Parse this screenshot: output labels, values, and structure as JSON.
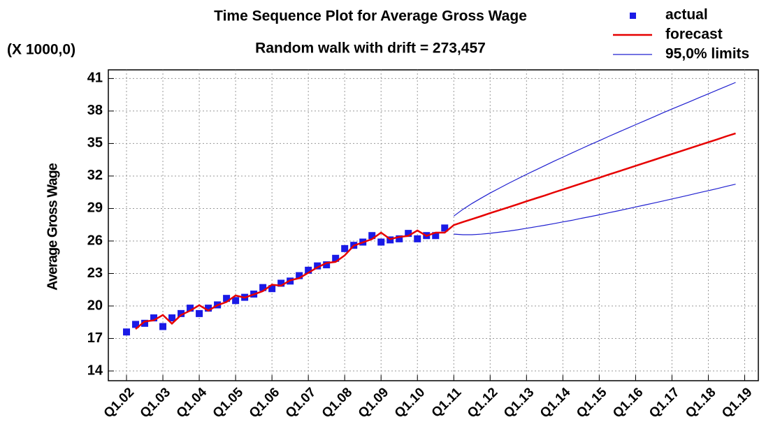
{
  "chart_data": {
    "type": "line",
    "title": "Time Sequence Plot for Average Gross Wage",
    "subtitle": "Random walk with drift = 273,457",
    "ylabel": "Average Gross Wage",
    "y_scale_note": "(X 1000,0)",
    "xlim": [
      -2,
      69.5
    ],
    "ylim": [
      13.1,
      41.8
    ],
    "xticks": [
      {
        "value": 0,
        "label": "Q1.02"
      },
      {
        "value": 4,
        "label": "Q1.03"
      },
      {
        "value": 8,
        "label": "Q1.04"
      },
      {
        "value": 12,
        "label": "Q1.05"
      },
      {
        "value": 16,
        "label": "Q1.06"
      },
      {
        "value": 20,
        "label": "Q1.07"
      },
      {
        "value": 24,
        "label": "Q1.08"
      },
      {
        "value": 28,
        "label": "Q1.09"
      },
      {
        "value": 32,
        "label": "Q1.10"
      },
      {
        "value": 36,
        "label": "Q1.11"
      },
      {
        "value": 40,
        "label": "Q1.12"
      },
      {
        "value": 44,
        "label": "Q1.13"
      },
      {
        "value": 48,
        "label": "Q1.14"
      },
      {
        "value": 52,
        "label": "Q1.15"
      },
      {
        "value": 56,
        "label": "Q1.16"
      },
      {
        "value": 60,
        "label": "Q1.17"
      },
      {
        "value": 64,
        "label": "Q1.18"
      },
      {
        "value": 68,
        "label": "Q1.19"
      }
    ],
    "yticks": [
      14,
      17,
      20,
      23,
      26,
      29,
      32,
      35,
      38,
      41
    ],
    "grid": true,
    "legend": "top-right",
    "series": [
      {
        "name": "actual",
        "kind": "points",
        "color": "#1a1ae6",
        "x": [
          0,
          1,
          2,
          3,
          4,
          5,
          6,
          7,
          8,
          9,
          10,
          11,
          12,
          13,
          14,
          15,
          16,
          17,
          18,
          19,
          20,
          21,
          22,
          23,
          24,
          25,
          26,
          27,
          28,
          29,
          30,
          31,
          32,
          33,
          34,
          35
        ],
        "values": [
          17.6,
          18.3,
          18.4,
          18.9,
          18.1,
          18.9,
          19.3,
          19.8,
          19.3,
          19.8,
          20.1,
          20.7,
          20.5,
          20.8,
          21.1,
          21.7,
          21.6,
          22.1,
          22.3,
          22.8,
          23.3,
          23.7,
          23.8,
          24.4,
          25.3,
          25.6,
          25.9,
          26.5,
          25.9,
          26.1,
          26.2,
          26.7,
          26.2,
          26.5,
          26.5,
          27.2
        ]
      },
      {
        "name": "forecast",
        "kind": "line",
        "color": "#e60000",
        "x": [
          1,
          2,
          3,
          4,
          5,
          6,
          7,
          8,
          9,
          10,
          11,
          12,
          13,
          14,
          15,
          16,
          17,
          18,
          19,
          20,
          21,
          22,
          23,
          24,
          25,
          26,
          27,
          28,
          29,
          30,
          31,
          32,
          33,
          34,
          35,
          36,
          37,
          38,
          39,
          40,
          41,
          42,
          43,
          44,
          45,
          46,
          47,
          48,
          49,
          50,
          51,
          52,
          53,
          54,
          55,
          56,
          57,
          58,
          59,
          60,
          61,
          62,
          63,
          64,
          65,
          66,
          67
        ],
        "values": [
          17.87,
          18.57,
          18.67,
          19.17,
          18.37,
          19.17,
          19.57,
          20.07,
          19.57,
          20.07,
          20.37,
          20.97,
          20.77,
          21.07,
          21.37,
          21.97,
          21.87,
          22.37,
          22.57,
          23.07,
          23.57,
          23.97,
          24.07,
          24.67,
          25.57,
          25.87,
          26.17,
          26.77,
          26.17,
          26.37,
          26.47,
          26.97,
          26.47,
          26.77,
          26.77,
          27.47,
          27.75,
          28.02,
          28.29,
          28.57,
          28.84,
          29.11,
          29.38,
          29.66,
          29.93,
          30.2,
          30.48,
          30.75,
          31.02,
          31.3,
          31.57,
          31.84,
          32.12,
          32.39,
          32.66,
          32.94,
          33.21,
          33.48,
          33.76,
          34.03,
          34.3,
          34.57,
          34.85,
          35.12,
          35.39,
          35.67,
          35.94
        ]
      },
      {
        "name": "95,0% limits",
        "kind": "band",
        "color": "#2020d0",
        "x": [
          36,
          37,
          38,
          39,
          40,
          41,
          42,
          43,
          44,
          45,
          46,
          47,
          48,
          49,
          50,
          51,
          52,
          53,
          54,
          55,
          56,
          57,
          58,
          59,
          60,
          61,
          62,
          63,
          64,
          65,
          66,
          67
        ],
        "values": [
          28.3,
          28.92,
          29.46,
          29.95,
          30.43,
          30.87,
          31.31,
          31.73,
          32.15,
          32.55,
          32.95,
          33.36,
          33.74,
          34.13,
          34.51,
          34.89,
          35.26,
          35.64,
          36.01,
          36.37,
          36.74,
          37.1,
          37.46,
          37.83,
          38.18,
          38.53,
          38.88,
          39.24,
          39.59,
          39.94,
          40.29,
          40.64
        ],
        "lower": [
          26.64,
          26.58,
          26.58,
          26.63,
          26.71,
          26.81,
          26.91,
          27.03,
          27.17,
          27.31,
          27.45,
          27.6,
          27.76,
          27.91,
          28.09,
          28.25,
          28.42,
          28.6,
          28.77,
          28.95,
          29.14,
          29.32,
          29.5,
          29.69,
          29.88,
          30.07,
          30.26,
          30.46,
          30.65,
          30.84,
          31.05,
          31.24
        ]
      }
    ]
  }
}
